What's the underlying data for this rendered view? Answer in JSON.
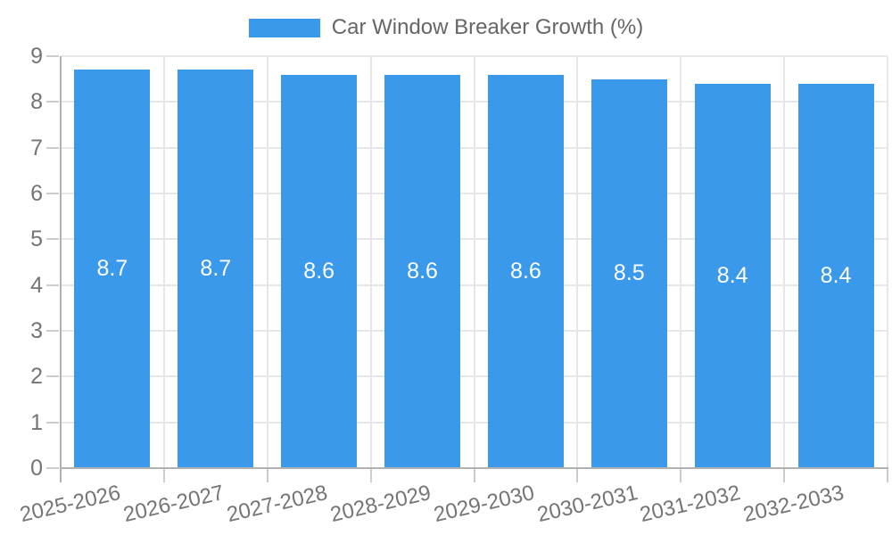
{
  "legend": {
    "label": "Car Window Breaker Growth (%)"
  },
  "colors": {
    "bar": "#3b99ec",
    "grid": "#e7e7e7",
    "axis": "#b1b1b1",
    "tick": "#cccccc",
    "tick_text": "#757575",
    "legend_text": "#666666",
    "value_label_text": "#ffffff"
  },
  "chart_data": {
    "type": "bar",
    "title": "",
    "series_name": "Car Window Breaker Growth (%)",
    "categories": [
      "2025-2026",
      "2026-2027",
      "2027-2028",
      "2028-2029",
      "2029-2030",
      "2030-2031",
      "2031-2032",
      "2032-2033"
    ],
    "values": [
      8.7,
      8.7,
      8.6,
      8.6,
      8.6,
      8.5,
      8.4,
      8.4
    ],
    "value_labels": [
      "8.7",
      "8.7",
      "8.6",
      "8.6",
      "8.6",
      "8.5",
      "8.4",
      "8.4"
    ],
    "xlabel": "",
    "ylabel": "",
    "ylim": [
      0,
      9
    ],
    "yticks": [
      0,
      1,
      2,
      3,
      4,
      5,
      6,
      7,
      8,
      9
    ],
    "grid": true,
    "legend_position": "top",
    "bar_color": "#3b99ec"
  }
}
